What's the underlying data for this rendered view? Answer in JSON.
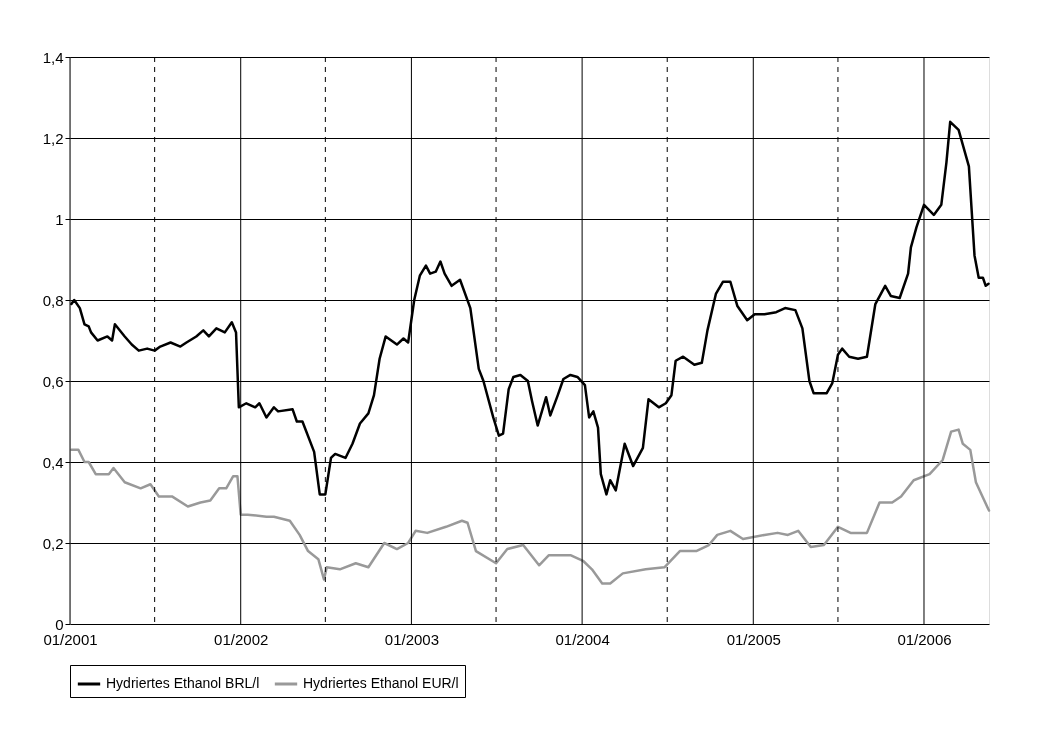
{
  "chart_data": {
    "type": "line",
    "xlim": [
      "2001-01-01",
      "2006-05-20"
    ],
    "ylim": [
      0,
      1.4
    ],
    "xticks": [
      {
        "value": "2001-01-01",
        "label": "01/2001"
      },
      {
        "value": "2001-07-01",
        "label": null
      },
      {
        "value": "2002-01-01",
        "label": "01/2002"
      },
      {
        "value": "2002-07-01",
        "label": null
      },
      {
        "value": "2003-01-01",
        "label": "01/2003"
      },
      {
        "value": "2003-07-01",
        "label": null
      },
      {
        "value": "2004-01-01",
        "label": "01/2004"
      },
      {
        "value": "2004-07-01",
        "label": null
      },
      {
        "value": "2005-01-01",
        "label": "01/2005"
      },
      {
        "value": "2005-07-01",
        "label": null
      },
      {
        "value": "2006-01-01",
        "label": "01/2006"
      }
    ],
    "yticks": [
      0,
      {
        "value": 0.2,
        "label": "0,2"
      },
      {
        "value": 0.4,
        "label": "0,4"
      },
      {
        "value": 0.6,
        "label": "0,6"
      },
      {
        "value": 0.8,
        "label": "0,8"
      },
      1,
      {
        "value": 1.2,
        "label": "1,2"
      },
      {
        "value": 1.4,
        "label": "1,4"
      }
    ],
    "grid": true,
    "legend": "bottom",
    "marker": "none",
    "line_style": "solid",
    "series": [
      {
        "name": "Hydriertes Ethanol BRL/l",
        "color": "#000000",
        "x": [
          "2001-01-04",
          "2001-01-10",
          "2001-01-22",
          "2001-02-01",
          "2001-02-10",
          "2001-02-15",
          "2001-03-01",
          "2001-03-22",
          "2001-04-01",
          "2001-04-07",
          "2001-04-28",
          "2001-05-13",
          "2001-05-28",
          "2001-06-15",
          "2001-07-01",
          "2001-07-13",
          "2001-08-04",
          "2001-08-25",
          "2001-09-07",
          "2001-09-28",
          "2001-10-13",
          "2001-10-25",
          "2001-11-10",
          "2001-11-28",
          "2001-12-13",
          "2001-12-22",
          "2001-12-28",
          "2002-01-13",
          "2002-02-01",
          "2002-02-10",
          "2002-02-25",
          "2002-03-13",
          "2002-03-22",
          "2002-04-22",
          "2002-05-01",
          "2002-05-13",
          "2002-06-07",
          "2002-06-19",
          "2002-07-01",
          "2002-07-13",
          "2002-07-22",
          "2002-08-13",
          "2002-08-28",
          "2002-09-13",
          "2002-10-01",
          "2002-10-13",
          "2002-10-25",
          "2002-11-07",
          "2002-12-01",
          "2002-12-15",
          "2002-12-25",
          "2003-01-07",
          "2003-01-19",
          "2003-02-01",
          "2003-02-10",
          "2003-02-22",
          "2003-03-04",
          "2003-03-13",
          "2003-03-28",
          "2003-04-15",
          "2003-05-07",
          "2003-05-25",
          "2003-06-04",
          "2003-06-25",
          "2003-07-07",
          "2003-07-16",
          "2003-07-28",
          "2003-08-07",
          "2003-08-22",
          "2003-09-07",
          "2003-09-16",
          "2003-09-28",
          "2003-10-16",
          "2003-10-25",
          "2003-11-10",
          "2003-11-22",
          "2003-12-07",
          "2003-12-22",
          "2004-01-07",
          "2004-01-16",
          "2004-01-25",
          "2004-02-04",
          "2004-02-10",
          "2004-02-22",
          "2004-03-01",
          "2004-03-13",
          "2004-04-01",
          "2004-04-19",
          "2004-05-10",
          "2004-05-22",
          "2004-06-13",
          "2004-06-28",
          "2004-07-10",
          "2004-07-19",
          "2004-08-04",
          "2004-08-28",
          "2004-09-13",
          "2004-09-25",
          "2004-10-13",
          "2004-10-28",
          "2004-11-13",
          "2004-11-28",
          "2004-12-19",
          "2005-01-04",
          "2005-01-25",
          "2005-02-19",
          "2005-03-10",
          "2005-04-01",
          "2005-04-16",
          "2005-05-01",
          "2005-05-10",
          "2005-06-07",
          "2005-06-19",
          "2005-07-01",
          "2005-07-10",
          "2005-07-25",
          "2005-08-13",
          "2005-09-01",
          "2005-09-19",
          "2005-10-10",
          "2005-10-22",
          "2005-11-10",
          "2005-11-28",
          "2005-12-04",
          "2005-12-16",
          "2006-01-01",
          "2006-01-22",
          "2006-02-07",
          "2006-02-18",
          "2006-02-26",
          "2006-03-16",
          "2006-04-07",
          "2006-04-19",
          "2006-04-28",
          "2006-05-07",
          "2006-05-13",
          "2006-05-19"
        ],
        "values": [
          0.79,
          0.8,
          0.78,
          0.74,
          0.735,
          0.72,
          0.7,
          0.71,
          0.7,
          0.74,
          0.71,
          0.69,
          0.675,
          0.68,
          0.675,
          0.685,
          0.695,
          0.685,
          0.695,
          0.71,
          0.725,
          0.71,
          0.73,
          0.72,
          0.745,
          0.72,
          0.535,
          0.545,
          0.535,
          0.545,
          0.51,
          0.535,
          0.525,
          0.53,
          0.5,
          0.5,
          0.425,
          0.32,
          0.32,
          0.41,
          0.42,
          0.41,
          0.445,
          0.495,
          0.52,
          0.565,
          0.655,
          0.71,
          0.69,
          0.705,
          0.695,
          0.8,
          0.86,
          0.885,
          0.865,
          0.87,
          0.895,
          0.865,
          0.835,
          0.85,
          0.78,
          0.63,
          0.6,
          0.51,
          0.465,
          0.47,
          0.58,
          0.61,
          0.615,
          0.6,
          0.55,
          0.49,
          0.56,
          0.515,
          0.565,
          0.605,
          0.615,
          0.61,
          0.59,
          0.51,
          0.525,
          0.485,
          0.37,
          0.32,
          0.355,
          0.33,
          0.445,
          0.39,
          0.435,
          0.555,
          0.535,
          0.545,
          0.565,
          0.65,
          0.66,
          0.64,
          0.645,
          0.725,
          0.815,
          0.845,
          0.845,
          0.785,
          0.75,
          0.765,
          0.765,
          0.77,
          0.78,
          0.775,
          0.73,
          0.6,
          0.57,
          0.57,
          0.595,
          0.665,
          0.68,
          0.66,
          0.655,
          0.66,
          0.79,
          0.835,
          0.81,
          0.805,
          0.865,
          0.93,
          0.98,
          1.035,
          1.01,
          1.035,
          1.14,
          1.24,
          1.22,
          1.13,
          0.91,
          0.855,
          0.855,
          0.835,
          0.84
        ]
      },
      {
        "name": "Hydriertes Ethanol EUR/l",
        "color": "#999999",
        "x": [
          "2001-01-04",
          "2001-01-19",
          "2001-02-01",
          "2001-02-10",
          "2001-02-25",
          "2001-03-25",
          "2001-04-04",
          "2001-04-28",
          "2001-06-01",
          "2001-06-22",
          "2001-07-10",
          "2001-08-07",
          "2001-09-10",
          "2001-10-07",
          "2001-10-28",
          "2001-11-16",
          "2001-12-01",
          "2001-12-16",
          "2001-12-25",
          "2002-01-01",
          "2002-01-16",
          "2002-02-25",
          "2002-03-13",
          "2002-04-16",
          "2002-05-07",
          "2002-05-25",
          "2002-06-16",
          "2002-06-28",
          "2002-07-04",
          "2002-08-01",
          "2002-09-04",
          "2002-10-01",
          "2002-11-04",
          "2002-12-01",
          "2002-12-25",
          "2003-01-10",
          "2003-02-04",
          "2003-03-16",
          "2003-04-19",
          "2003-05-01",
          "2003-05-19",
          "2003-07-01",
          "2003-07-25",
          "2003-08-28",
          "2003-10-01",
          "2003-10-22",
          "2003-12-07",
          "2004-01-04",
          "2004-01-22",
          "2004-02-13",
          "2004-03-01",
          "2004-03-28",
          "2004-05-16",
          "2004-06-25",
          "2004-07-28",
          "2004-09-01",
          "2004-09-28",
          "2004-10-16",
          "2004-11-13",
          "2004-12-10",
          "2005-01-25",
          "2005-02-22",
          "2005-03-16",
          "2005-04-07",
          "2005-05-04",
          "2005-06-01",
          "2005-07-01",
          "2005-07-28",
          "2005-09-01",
          "2005-09-28",
          "2005-10-25",
          "2005-11-13",
          "2005-12-10",
          "2006-01-13",
          "2006-02-10",
          "2006-02-28",
          "2006-03-16",
          "2006-03-25",
          "2006-04-10",
          "2006-04-22",
          "2006-05-04",
          "2006-05-20"
        ],
        "values": [
          0.43,
          0.43,
          0.4,
          0.4,
          0.37,
          0.37,
          0.385,
          0.35,
          0.335,
          0.345,
          0.315,
          0.315,
          0.29,
          0.3,
          0.305,
          0.335,
          0.335,
          0.365,
          0.365,
          0.27,
          0.27,
          0.265,
          0.265,
          0.255,
          0.22,
          0.18,
          0.16,
          0.11,
          0.14,
          0.135,
          0.15,
          0.14,
          0.2,
          0.185,
          0.2,
          0.23,
          0.225,
          0.24,
          0.255,
          0.25,
          0.18,
          0.15,
          0.185,
          0.195,
          0.145,
          0.17,
          0.17,
          0.155,
          0.135,
          0.1,
          0.1,
          0.125,
          0.135,
          0.14,
          0.18,
          0.18,
          0.195,
          0.22,
          0.23,
          0.21,
          0.22,
          0.225,
          0.22,
          0.23,
          0.19,
          0.195,
          0.24,
          0.225,
          0.225,
          0.3,
          0.3,
          0.315,
          0.355,
          0.37,
          0.405,
          0.475,
          0.48,
          0.445,
          0.43,
          0.35,
          0.32,
          0.28
        ]
      }
    ]
  }
}
